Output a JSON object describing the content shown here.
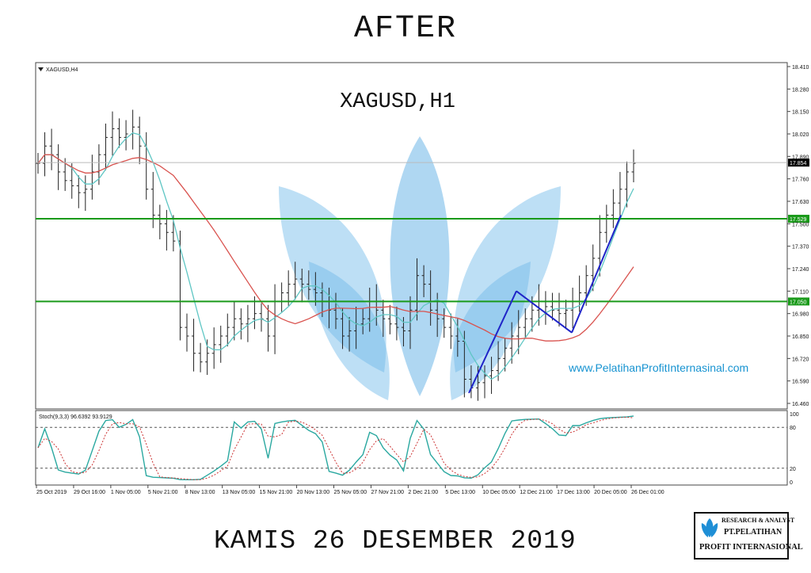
{
  "header": {
    "title": "AFTER"
  },
  "footer": {
    "date": "KAMIS 26 DESEMBER 2019"
  },
  "logo": {
    "line1": "RESEARCH & ANALYST",
    "line2": "PT.PELATIHAN",
    "line3": "PROFIT INTERNASIONAL",
    "icon": "leaf-logo-icon"
  },
  "chart_data": [
    {
      "type": "line",
      "symbol_label": "XAGUSD,H4",
      "title": "XAGUSD,H1",
      "watermark_url": "www.PelatihanProfitInternasinal.com",
      "y_ticks": [
        "18.410",
        "18.280",
        "18.150",
        "18.020",
        "17.890",
        "17.760",
        "17.630",
        "17.500",
        "17.370",
        "17.240",
        "17.110",
        "16.980",
        "16.850",
        "16.720",
        "16.590",
        "16.460"
      ],
      "ylim": [
        16.46,
        18.41
      ],
      "price_markers": [
        {
          "label": "17.854",
          "value": 17.854,
          "color": "#000000"
        },
        {
          "label": "17.529",
          "value": 17.529,
          "color": "#1a9a1a"
        },
        {
          "label": "17.050",
          "value": 17.05,
          "color": "#1a9a1a"
        }
      ],
      "horizontal_levels": [
        17.529,
        17.05
      ],
      "current_price": 17.854,
      "close_series": [
        17.85,
        17.95,
        17.9,
        17.8,
        17.75,
        17.72,
        17.68,
        17.7,
        17.8,
        17.9,
        18.0,
        18.05,
        18.0,
        18.02,
        18.06,
        17.95,
        17.7,
        17.55,
        17.5,
        17.45,
        17.4,
        16.9,
        16.85,
        16.75,
        16.7,
        16.75,
        16.8,
        16.85,
        16.9,
        16.95,
        16.92,
        16.95,
        16.98,
        16.95,
        16.85,
        17.05,
        17.1,
        17.15,
        17.18,
        17.15,
        17.12,
        17.1,
        17.05,
        17.0,
        16.95,
        16.85,
        16.88,
        16.92,
        16.95,
        17.05,
        17.0,
        16.95,
        16.92,
        16.9,
        16.88,
        17.0,
        17.2,
        17.15,
        17.0,
        16.95,
        16.9,
        16.85,
        16.82,
        16.6,
        16.55,
        16.58,
        16.62,
        16.65,
        16.72,
        16.78,
        16.85,
        16.9,
        16.95,
        17.0,
        17.05,
        17.02,
        17.0,
        16.98,
        17.0,
        17.05,
        17.1,
        17.2,
        17.3,
        17.45,
        17.55,
        17.62,
        17.7,
        17.8,
        17.85
      ],
      "trend_lines": [
        [
          16.52,
          17.11
        ],
        [
          17.11,
          16.87
        ],
        [
          16.87,
          17.55
        ]
      ],
      "x_ticks": [
        "25 Oct 2019",
        "29 Oct 16:00",
        "1 Nov 05:00",
        "5 Nov 21:00",
        "8 Nov 13:00",
        "13 Nov 05:00",
        "15 Nov 21:00",
        "20 Nov 13:00",
        "25 Nov 05:00",
        "27 Nov 21:00",
        "2 Dec 21:00",
        "5 Dec 13:00",
        "10 Dec 05:00",
        "12 Dec 21:00",
        "17 Dec 13:00",
        "20 Dec 05:00",
        "26 Dec 01:00"
      ]
    },
    {
      "type": "line",
      "indicator_label": "Stoch(9,3,3) 96.6392 93.9129",
      "y_ticks": [
        "100",
        "80",
        "20",
        "0"
      ],
      "ylim": [
        0,
        100
      ],
      "levels": [
        80,
        20
      ],
      "last_values": [
        96.6392,
        93.9129
      ]
    }
  ],
  "colors": {
    "ma_fast": "#5fc6c4",
    "ma_slow": "#d9534f",
    "trend": "#1f24c8",
    "level": "#1a9a1a",
    "stoch_main": "#2aa8a0",
    "stoch_signal": "#cc3333",
    "watermark": "#1793d1",
    "leaf": "#6db7e8"
  }
}
